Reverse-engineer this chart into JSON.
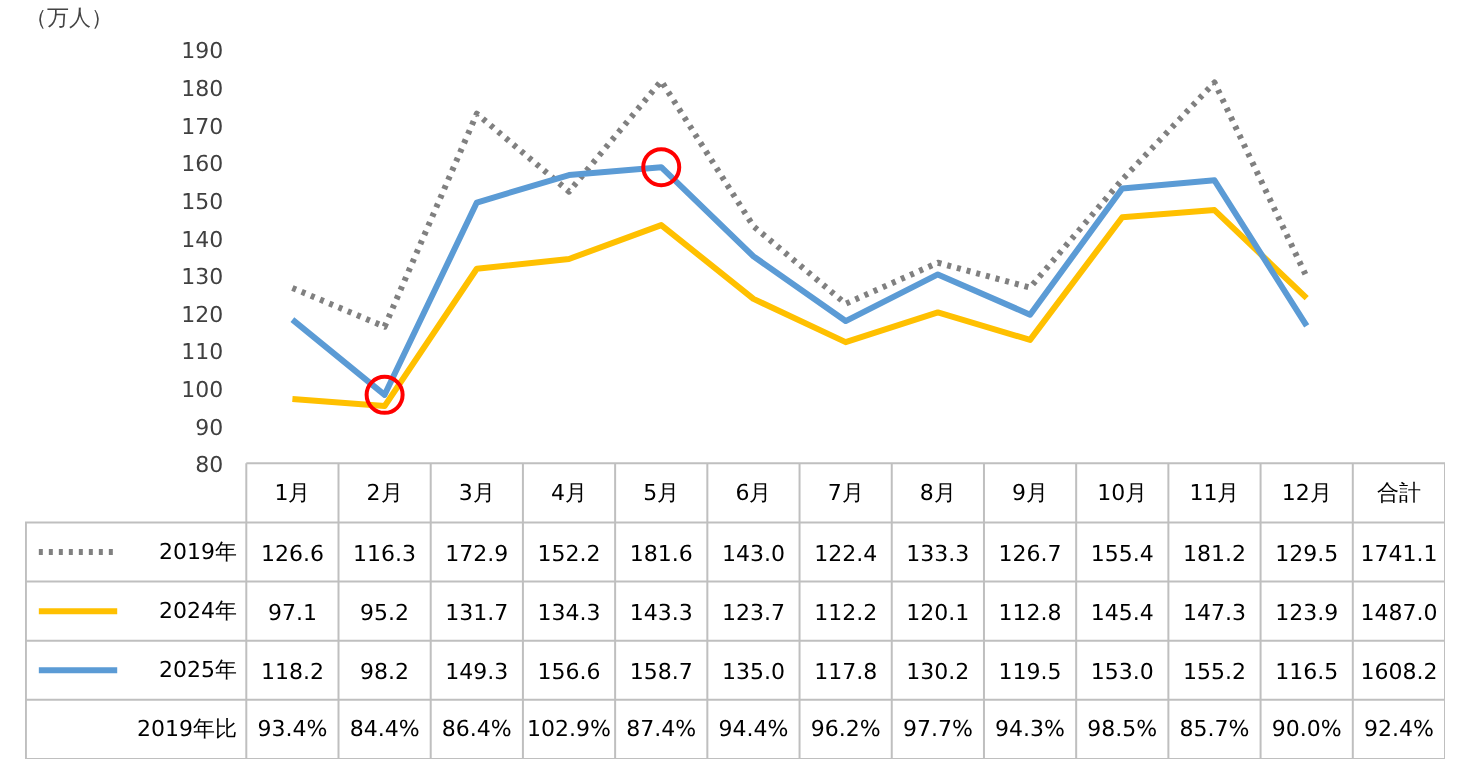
{
  "chart_data": {
    "type": "line",
    "ylabel": "（万人）",
    "categories": [
      "1月",
      "2月",
      "3月",
      "4月",
      "5月",
      "6月",
      "7月",
      "8月",
      "9月",
      "10月",
      "11月",
      "12月",
      "合計"
    ],
    "ylim": [
      80,
      190
    ],
    "yticks": [
      80,
      90,
      100,
      110,
      120,
      130,
      140,
      150,
      160,
      170,
      180,
      190
    ],
    "grid": false,
    "legend": "bottom left",
    "series": [
      {
        "name": "2019年",
        "color": "#808080",
        "line_style": "dotted",
        "values": [
          126.6,
          116.3,
          172.9,
          152.2,
          181.6,
          143.0,
          122.4,
          133.3,
          126.7,
          155.4,
          181.2,
          129.5,
          null
        ],
        "value_labels": [
          "126.6",
          "116.3",
          "172.9",
          "152.2",
          "181.6",
          "143.0",
          "122.4",
          "133.3",
          "126.7",
          "155.4",
          "181.2",
          "129.5",
          "1741.1"
        ]
      },
      {
        "name": "2024年",
        "color": "#ffc000",
        "line_style": "solid",
        "values": [
          97.1,
          95.2,
          131.7,
          134.3,
          143.3,
          123.7,
          112.2,
          120.1,
          112.8,
          145.4,
          147.3,
          123.9,
          null
        ],
        "value_labels": [
          "97.1",
          "95.2",
          "131.7",
          "134.3",
          "143.3",
          "123.7",
          "112.2",
          "120.1",
          "112.8",
          "145.4",
          "147.3",
          "123.9",
          "1487.0"
        ]
      },
      {
        "name": "2025年",
        "color": "#5b9bd5",
        "line_style": "solid",
        "values": [
          118.2,
          98.2,
          149.3,
          156.6,
          158.7,
          135.0,
          117.8,
          130.2,
          119.5,
          153.0,
          155.2,
          116.5,
          null
        ],
        "value_labels": [
          "118.2",
          "98.2",
          "149.3",
          "156.6",
          "158.7",
          "135.0",
          "117.8",
          "130.2",
          "119.5",
          "153.0",
          "155.2",
          "116.5",
          "1608.2"
        ]
      },
      {
        "type": "scatter",
        "color": "#ff0000",
        "marker": "circle",
        "values": [
          null,
          98.2,
          null,
          null,
          158.7,
          null,
          null,
          null,
          null,
          null,
          null,
          null,
          null
        ]
      }
    ],
    "annotations": [
      "2019年比",
      "93.4%",
      "84.4%",
      "86.4%",
      "102.9%",
      "87.4%",
      "94.4%",
      "96.2%",
      "97.7%",
      "94.3%",
      "98.5%",
      "85.7%",
      "90.0%",
      "92.4%"
    ]
  }
}
